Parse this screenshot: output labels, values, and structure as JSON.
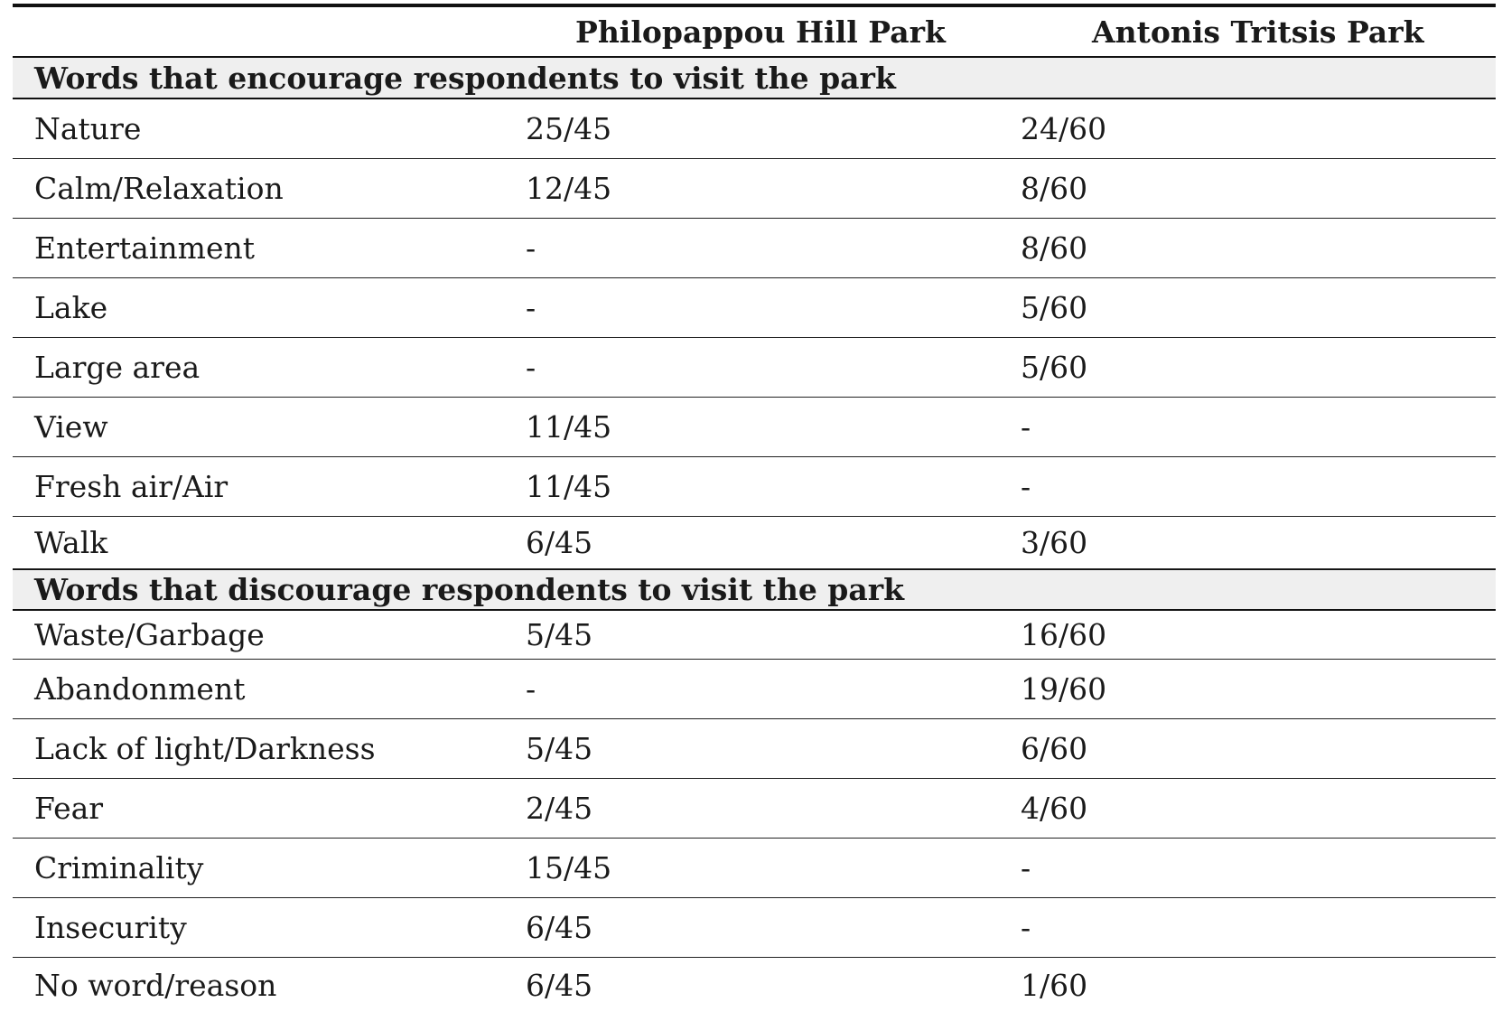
{
  "table": {
    "headers": [
      "",
      "Philopappou Hill Park",
      "Antonis Tritsis Park"
    ],
    "sections": [
      {
        "title": "Words that encourage respondents to visit the park",
        "rows": [
          [
            "Nature",
            "25/45",
            "24/60"
          ],
          [
            "Calm/Relaxation",
            "12/45",
            "8/60"
          ],
          [
            "Entertainment",
            "-",
            "8/60"
          ],
          [
            "Lake",
            "-",
            "5/60"
          ],
          [
            "Large area",
            "-",
            "5/60"
          ],
          [
            "View",
            "11/45",
            "-"
          ],
          [
            "Fresh air/Air",
            "11/45",
            "-"
          ],
          [
            "Walk",
            "6/45",
            "3/60"
          ]
        ]
      },
      {
        "title": "Words that discourage respondents to visit the park",
        "rows": [
          [
            "Waste/Garbage",
            "5/45",
            "16/60"
          ],
          [
            "Abandonment",
            "-",
            "19/60"
          ],
          [
            "Lack of light/Darkness",
            "5/45",
            "6/60"
          ],
          [
            "Fear",
            "2/45",
            "4/60"
          ],
          [
            "Criminality",
            "15/45",
            "-"
          ],
          [
            "Insecurity",
            "6/45",
            "-"
          ],
          [
            "No word/reason",
            "6/45",
            "1/60"
          ]
        ]
      }
    ]
  }
}
